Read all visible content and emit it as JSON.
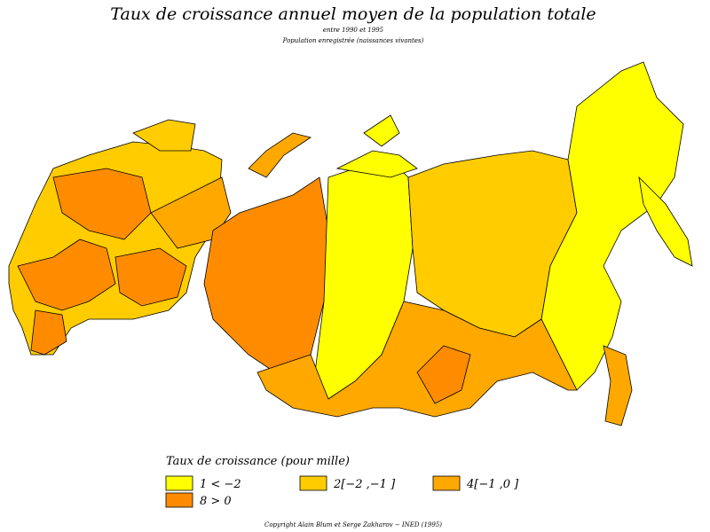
{
  "header": {
    "title": "Taux de croissance annuel moyen de la population totale",
    "subtitle": "entre 1990 et 1995",
    "note": "Population enregistrée (naissances vivantes)"
  },
  "legend": {
    "title": "Taux de croissance (pour mille)",
    "items": [
      {
        "label": "1 < −2",
        "color": "#ffff00"
      },
      {
        "label": "2[−2 ,−1 ]",
        "color": "#ffcc00"
      },
      {
        "label": "4[−1 ,0 ]",
        "color": "#ffa800"
      },
      {
        "label": "8 > 0",
        "color": "#ff8c00"
      }
    ]
  },
  "footer": "Copyright Alain Blum et Serge Zakharov − INED (1995)"
}
